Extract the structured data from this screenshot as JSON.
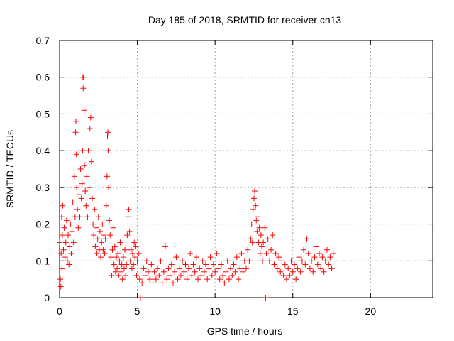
{
  "chart_data": {
    "type": "scatter",
    "title": "Day 185 of 2018, SRMTID for receiver cn13",
    "xlabel": "GPS time / hours",
    "ylabel": "SRMTID / TECUs",
    "xlim": [
      0,
      24
    ],
    "ylim": [
      0,
      0.7
    ],
    "xticks": [
      0,
      5,
      10,
      15,
      20
    ],
    "yticks": [
      0,
      0.1,
      0.2,
      0.3,
      0.4,
      0.5,
      0.6,
      0.7
    ],
    "grid": true,
    "marker": "+",
    "series": [
      {
        "name": "SRMTID",
        "color": "#ff0000",
        "points": [
          [
            0.0,
            0.15
          ],
          [
            0.05,
            0.05
          ],
          [
            0.08,
            0.03
          ],
          [
            0.1,
            0.12
          ],
          [
            0.13,
            0.22
          ],
          [
            0.15,
            0.08
          ],
          [
            0.18,
            0.17
          ],
          [
            0.2,
            0.25
          ],
          [
            0.25,
            0.13
          ],
          [
            0.3,
            0.19
          ],
          [
            0.35,
            0.11
          ],
          [
            0.4,
            0.15
          ],
          [
            0.45,
            0.21
          ],
          [
            0.5,
            0.1
          ],
          [
            0.55,
            0.17
          ],
          [
            0.6,
            0.09
          ],
          [
            0.65,
            0.14
          ],
          [
            0.7,
            0.2
          ],
          [
            0.75,
            0.12
          ],
          [
            0.8,
            0.18
          ],
          [
            0.85,
            0.26
          ],
          [
            0.9,
            0.15
          ],
          [
            0.95,
            0.33
          ],
          [
            1.0,
            0.22
          ],
          [
            1.03,
            0.45
          ],
          [
            1.05,
            0.48
          ],
          [
            1.08,
            0.39
          ],
          [
            1.1,
            0.3
          ],
          [
            1.15,
            0.24
          ],
          [
            1.2,
            0.19
          ],
          [
            1.25,
            0.28
          ],
          [
            1.3,
            0.22
          ],
          [
            1.35,
            0.35
          ],
          [
            1.4,
            0.27
          ],
          [
            1.45,
            0.31
          ],
          [
            1.48,
            0.4
          ],
          [
            1.5,
            0.6
          ],
          [
            1.52,
            0.57
          ],
          [
            1.55,
            0.6
          ],
          [
            1.58,
            0.51
          ],
          [
            1.6,
            0.36
          ],
          [
            1.65,
            0.29
          ],
          [
            1.7,
            0.25
          ],
          [
            1.75,
            0.33
          ],
          [
            1.8,
            0.22
          ],
          [
            1.85,
            0.4
          ],
          [
            1.9,
            0.3
          ],
          [
            1.95,
            0.46
          ],
          [
            2.0,
            0.49
          ],
          [
            2.05,
            0.37
          ],
          [
            2.1,
            0.27
          ],
          [
            2.15,
            0.2
          ],
          [
            2.2,
            0.17
          ],
          [
            2.25,
            0.24
          ],
          [
            2.3,
            0.14
          ],
          [
            2.35,
            0.19
          ],
          [
            2.4,
            0.12
          ],
          [
            2.45,
            0.16
          ],
          [
            2.5,
            0.22
          ],
          [
            2.55,
            0.13
          ],
          [
            2.6,
            0.18
          ],
          [
            2.65,
            0.11
          ],
          [
            2.7,
            0.15
          ],
          [
            2.75,
            0.2
          ],
          [
            2.8,
            0.13
          ],
          [
            2.85,
            0.17
          ],
          [
            2.9,
            0.12
          ],
          [
            2.95,
            0.16
          ],
          [
            3.0,
            0.25
          ],
          [
            3.05,
            0.33
          ],
          [
            3.08,
            0.44
          ],
          [
            3.1,
            0.45
          ],
          [
            3.12,
            0.4
          ],
          [
            3.15,
            0.3
          ],
          [
            3.2,
            0.21
          ],
          [
            3.25,
            0.17
          ],
          [
            3.3,
            0.11
          ],
          [
            3.35,
            0.06
          ],
          [
            3.4,
            0.13
          ],
          [
            3.45,
            0.19
          ],
          [
            3.5,
            0.09
          ],
          [
            3.55,
            0.14
          ],
          [
            3.6,
            0.07
          ],
          [
            3.65,
            0.11
          ],
          [
            3.7,
            0.08
          ],
          [
            3.75,
            0.12
          ],
          [
            3.8,
            0.06
          ],
          [
            3.85,
            0.1
          ],
          [
            3.9,
            0.15
          ],
          [
            3.95,
            0.07
          ],
          [
            4.0,
            0.09
          ],
          [
            4.05,
            0.05
          ],
          [
            4.1,
            0.11
          ],
          [
            4.15,
            0.08
          ],
          [
            4.2,
            0.13
          ],
          [
            4.25,
            0.06
          ],
          [
            4.3,
            0.09
          ],
          [
            4.35,
            0.17
          ],
          [
            4.4,
            0.22
          ],
          [
            4.45,
            0.24
          ],
          [
            4.5,
            0.18
          ],
          [
            4.55,
            0.1
          ],
          [
            4.6,
            0.13
          ],
          [
            4.65,
            0.08
          ],
          [
            4.7,
            0.12
          ],
          [
            4.75,
            0.09
          ],
          [
            4.8,
            0.15
          ],
          [
            4.85,
            0.11
          ],
          [
            4.9,
            0.14
          ],
          [
            4.95,
            0.06
          ],
          [
            5.0,
            0.1
          ],
          [
            5.1,
            0.12
          ],
          [
            5.15,
            0.05
          ],
          [
            5.2,
            0.0
          ],
          [
            5.3,
            0.04
          ],
          [
            5.4,
            0.08
          ],
          [
            5.5,
            0.06
          ],
          [
            5.6,
            0.1
          ],
          [
            5.7,
            0.07
          ],
          [
            5.8,
            0.05
          ],
          [
            5.9,
            0.09
          ],
          [
            6.0,
            0.04
          ],
          [
            6.1,
            0.07
          ],
          [
            6.2,
            0.05
          ],
          [
            6.3,
            0.08
          ],
          [
            6.4,
            0.06
          ],
          [
            6.5,
            0.1
          ],
          [
            6.6,
            0.04
          ],
          [
            6.7,
            0.07
          ],
          [
            6.8,
            0.14
          ],
          [
            6.9,
            0.05
          ],
          [
            7.0,
            0.08
          ],
          [
            7.1,
            0.06
          ],
          [
            7.2,
            0.09
          ],
          [
            7.3,
            0.04
          ],
          [
            7.4,
            0.07
          ],
          [
            7.5,
            0.11
          ],
          [
            7.6,
            0.05
          ],
          [
            7.7,
            0.08
          ],
          [
            7.8,
            0.06
          ],
          [
            7.9,
            0.1
          ],
          [
            8.0,
            0.07
          ],
          [
            8.1,
            0.09
          ],
          [
            8.2,
            0.05
          ],
          [
            8.3,
            0.08
          ],
          [
            8.4,
            0.12
          ],
          [
            8.5,
            0.06
          ],
          [
            8.6,
            0.09
          ],
          [
            8.7,
            0.07
          ],
          [
            8.8,
            0.11
          ],
          [
            8.9,
            0.05
          ],
          [
            9.0,
            0.08
          ],
          [
            9.1,
            0.06
          ],
          [
            9.2,
            0.1
          ],
          [
            9.3,
            0.07
          ],
          [
            9.4,
            0.09
          ],
          [
            9.5,
            0.05
          ],
          [
            9.6,
            0.08
          ],
          [
            9.7,
            0.11
          ],
          [
            9.8,
            0.06
          ],
          [
            9.9,
            0.09
          ],
          [
            10.0,
            0.07
          ],
          [
            10.1,
            0.12
          ],
          [
            10.2,
            0.08
          ],
          [
            10.3,
            0.05
          ],
          [
            10.4,
            0.09
          ],
          [
            10.5,
            0.06
          ],
          [
            10.6,
            0.04
          ],
          [
            10.7,
            0.07
          ],
          [
            10.8,
            0.1
          ],
          [
            10.9,
            0.05
          ],
          [
            11.0,
            0.08
          ],
          [
            11.1,
            0.06
          ],
          [
            11.2,
            0.09
          ],
          [
            11.3,
            0.07
          ],
          [
            11.4,
            0.11
          ],
          [
            11.5,
            0.05
          ],
          [
            11.6,
            0.08
          ],
          [
            11.7,
            0.12
          ],
          [
            11.8,
            0.07
          ],
          [
            11.9,
            0.1
          ],
          [
            12.0,
            0.08
          ],
          [
            12.1,
            0.13
          ],
          [
            12.2,
            0.1
          ],
          [
            12.3,
            0.16
          ],
          [
            12.35,
            0.2
          ],
          [
            12.4,
            0.15
          ],
          [
            12.45,
            0.24
          ],
          [
            12.5,
            0.27
          ],
          [
            12.55,
            0.29
          ],
          [
            12.6,
            0.25
          ],
          [
            12.65,
            0.21
          ],
          [
            12.7,
            0.18
          ],
          [
            12.75,
            0.22
          ],
          [
            12.8,
            0.15
          ],
          [
            12.85,
            0.19
          ],
          [
            12.9,
            0.12
          ],
          [
            12.95,
            0.17
          ],
          [
            13.0,
            0.14
          ],
          [
            13.05,
            0.1
          ],
          [
            13.1,
            0.15
          ],
          [
            13.2,
            0.19
          ],
          [
            13.25,
            0.0
          ],
          [
            13.3,
            0.12
          ],
          [
            13.4,
            0.16
          ],
          [
            13.5,
            0.1
          ],
          [
            13.6,
            0.13
          ],
          [
            13.7,
            0.17
          ],
          [
            13.8,
            0.09
          ],
          [
            13.9,
            0.12
          ],
          [
            14.0,
            0.08
          ],
          [
            14.1,
            0.11
          ],
          [
            14.2,
            0.07
          ],
          [
            14.3,
            0.1
          ],
          [
            14.4,
            0.06
          ],
          [
            14.5,
            0.09
          ],
          [
            14.6,
            0.05
          ],
          [
            14.7,
            0.08
          ],
          [
            14.8,
            0.06
          ],
          [
            14.9,
            0.1
          ],
          [
            15.0,
            0.07
          ],
          [
            15.1,
            0.09
          ],
          [
            15.2,
            0.05
          ],
          [
            15.3,
            0.08
          ],
          [
            15.4,
            0.11
          ],
          [
            15.5,
            0.07
          ],
          [
            15.6,
            0.1
          ],
          [
            15.7,
            0.13
          ],
          [
            15.8,
            0.09
          ],
          [
            15.9,
            0.16
          ],
          [
            16.0,
            0.12
          ],
          [
            16.1,
            0.08
          ],
          [
            16.2,
            0.1
          ],
          [
            16.3,
            0.07
          ],
          [
            16.4,
            0.11
          ],
          [
            16.5,
            0.14
          ],
          [
            16.6,
            0.09
          ],
          [
            16.7,
            0.12
          ],
          [
            16.8,
            0.08
          ],
          [
            16.9,
            0.11
          ],
          [
            17.0,
            0.07
          ],
          [
            17.1,
            0.1
          ],
          [
            17.2,
            0.13
          ],
          [
            17.3,
            0.09
          ],
          [
            17.4,
            0.11
          ],
          [
            17.5,
            0.08
          ],
          [
            17.6,
            0.12
          ]
        ]
      }
    ]
  }
}
